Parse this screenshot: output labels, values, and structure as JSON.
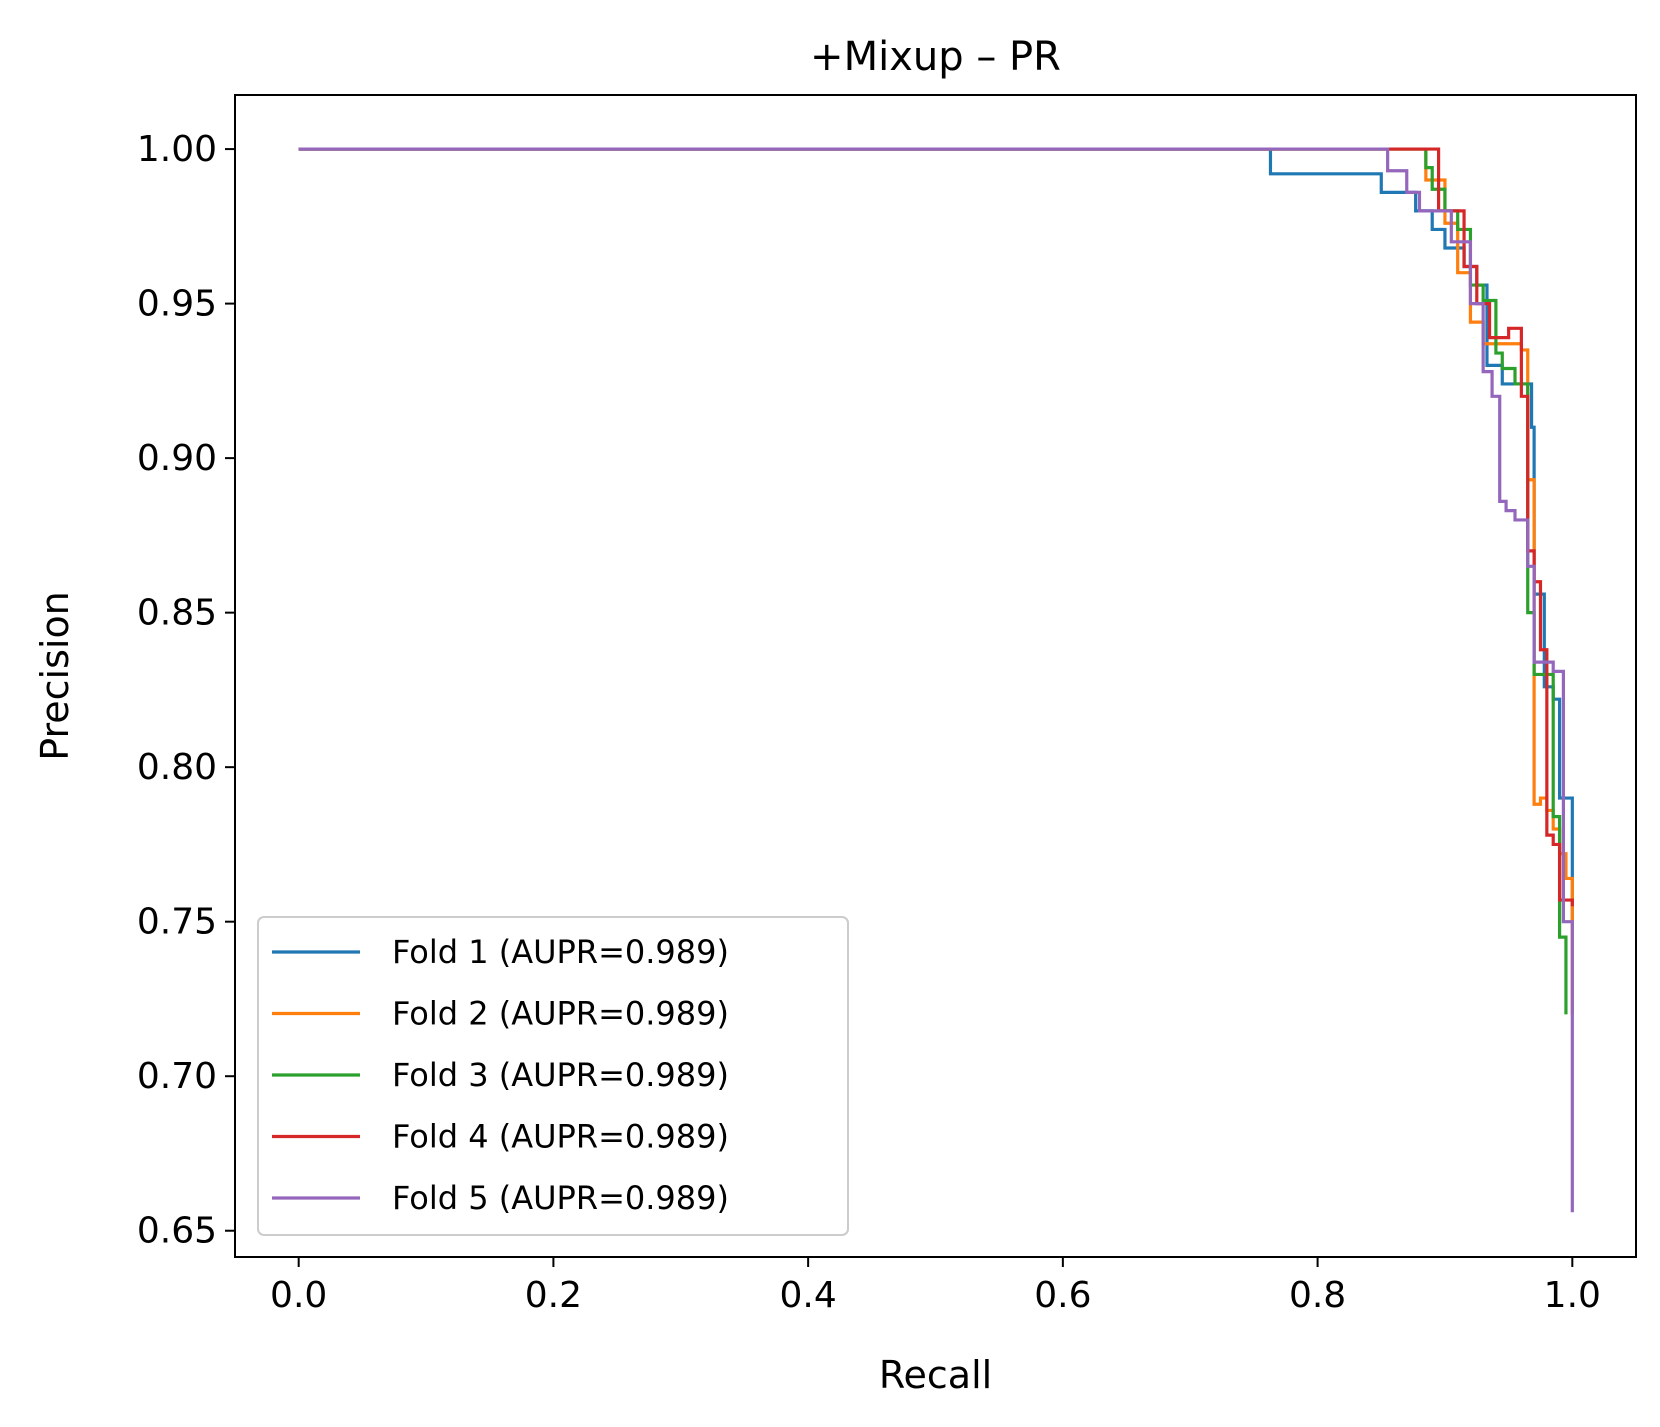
{
  "chart_data": {
    "type": "line",
    "title": "+Mixup – PR",
    "xlabel": "Recall",
    "ylabel": "Precision",
    "xlim": [
      -0.05,
      1.05
    ],
    "ylim": [
      0.6415,
      1.0175
    ],
    "xticks": [
      0.0,
      0.2,
      0.4,
      0.6,
      0.8,
      1.0
    ],
    "xtick_labels": [
      "0.0",
      "0.2",
      "0.4",
      "0.6",
      "0.8",
      "1.0"
    ],
    "yticks": [
      0.65,
      0.7,
      0.75,
      0.8,
      0.85,
      0.9,
      0.95,
      1.0
    ],
    "ytick_labels": [
      "0.65",
      "0.70",
      "0.75",
      "0.80",
      "0.85",
      "0.90",
      "0.95",
      "1.00"
    ],
    "grid": false,
    "legend_position": "lower left",
    "series": [
      {
        "name": "Fold 1 (AUPR=0.989)",
        "color": "#1f77b4",
        "x": [
          0.0,
          0.763,
          0.763,
          0.85,
          0.85,
          0.877,
          0.877,
          0.89,
          0.89,
          0.9,
          0.9,
          0.915,
          0.915,
          0.925,
          0.925,
          0.933,
          0.933,
          0.945,
          0.945,
          0.968,
          0.968,
          0.97,
          0.97,
          0.978,
          0.978,
          0.985,
          0.985,
          0.99,
          0.99,
          1.0,
          1.0
        ],
        "y": [
          1.0,
          1.0,
          0.992,
          0.992,
          0.986,
          0.986,
          0.98,
          0.98,
          0.974,
          0.974,
          0.968,
          0.968,
          0.962,
          0.962,
          0.956,
          0.956,
          0.93,
          0.93,
          0.924,
          0.924,
          0.91,
          0.91,
          0.856,
          0.856,
          0.826,
          0.826,
          0.822,
          0.822,
          0.79,
          0.79,
          0.75
        ]
      },
      {
        "name": "Fold 2 (AUPR=0.989)",
        "color": "#ff7f0e",
        "x": [
          0.0,
          0.885,
          0.885,
          0.9,
          0.9,
          0.91,
          0.91,
          0.92,
          0.92,
          0.93,
          0.93,
          0.96,
          0.96,
          0.965,
          0.965,
          0.97,
          0.97,
          0.975,
          0.975,
          0.98,
          0.98,
          0.985,
          0.985,
          0.99,
          0.99,
          0.995,
          0.995,
          1.0,
          1.0
        ],
        "y": [
          1.0,
          1.0,
          0.99,
          0.99,
          0.976,
          0.976,
          0.96,
          0.96,
          0.944,
          0.944,
          0.937,
          0.937,
          0.935,
          0.935,
          0.893,
          0.893,
          0.788,
          0.788,
          0.79,
          0.79,
          0.786,
          0.786,
          0.78,
          0.78,
          0.772,
          0.772,
          0.764,
          0.764,
          0.72
        ]
      },
      {
        "name": "Fold 3 (AUPR=0.989)",
        "color": "#2ca02c",
        "x": [
          0.0,
          0.885,
          0.885,
          0.89,
          0.89,
          0.9,
          0.9,
          0.91,
          0.91,
          0.92,
          0.92,
          0.93,
          0.93,
          0.94,
          0.94,
          0.945,
          0.945,
          0.955,
          0.955,
          0.965,
          0.965,
          0.97,
          0.97,
          0.985,
          0.985,
          0.99,
          0.99,
          0.995,
          0.995
        ],
        "y": [
          1.0,
          1.0,
          0.994,
          0.994,
          0.987,
          0.987,
          0.98,
          0.98,
          0.974,
          0.974,
          0.956,
          0.956,
          0.951,
          0.951,
          0.934,
          0.934,
          0.929,
          0.929,
          0.924,
          0.924,
          0.85,
          0.85,
          0.83,
          0.83,
          0.784,
          0.784,
          0.745,
          0.745,
          0.72
        ]
      },
      {
        "name": "Fold 4 (AUPR=0.989)",
        "color": "#d62728",
        "x": [
          0.0,
          0.895,
          0.895,
          0.9,
          0.9,
          0.915,
          0.915,
          0.925,
          0.925,
          0.935,
          0.935,
          0.95,
          0.95,
          0.96,
          0.96,
          0.965,
          0.965,
          0.97,
          0.97,
          0.975,
          0.975,
          0.98,
          0.98,
          0.985,
          0.985,
          0.99,
          0.99,
          1.0,
          1.0
        ],
        "y": [
          1.0,
          1.0,
          0.98,
          0.98,
          0.98,
          0.98,
          0.962,
          0.962,
          0.95,
          0.95,
          0.939,
          0.939,
          0.942,
          0.942,
          0.92,
          0.92,
          0.87,
          0.87,
          0.86,
          0.86,
          0.838,
          0.838,
          0.778,
          0.778,
          0.775,
          0.775,
          0.757,
          0.757,
          0.755
        ]
      },
      {
        "name": "Fold 5 (AUPR=0.989)",
        "color": "#9467bd",
        "x": [
          0.0,
          0.855,
          0.855,
          0.87,
          0.87,
          0.88,
          0.88,
          0.89,
          0.89,
          0.905,
          0.905,
          0.92,
          0.92,
          0.93,
          0.93,
          0.937,
          0.937,
          0.943,
          0.943,
          0.948,
          0.948,
          0.955,
          0.955,
          0.965,
          0.965,
          0.97,
          0.97,
          0.975,
          0.975,
          0.985,
          0.985,
          0.993,
          0.993,
          1.0,
          1.0
        ],
        "y": [
          1.0,
          1.0,
          0.993,
          0.993,
          0.986,
          0.986,
          0.98,
          0.98,
          0.98,
          0.98,
          0.97,
          0.97,
          0.95,
          0.95,
          0.928,
          0.928,
          0.92,
          0.92,
          0.886,
          0.886,
          0.883,
          0.883,
          0.88,
          0.88,
          0.865,
          0.865,
          0.834,
          0.834,
          0.834,
          0.834,
          0.831,
          0.831,
          0.75,
          0.75,
          0.656
        ]
      }
    ]
  }
}
